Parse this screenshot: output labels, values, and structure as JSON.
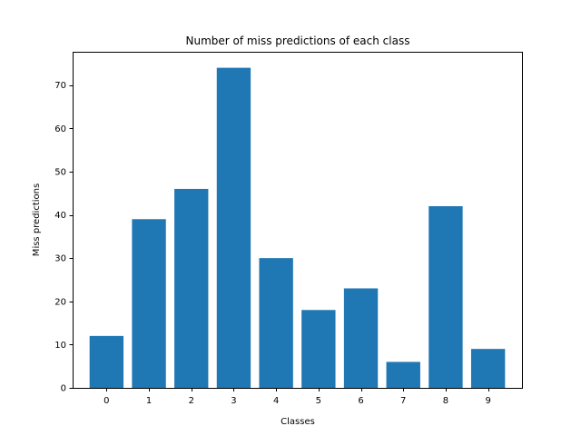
{
  "chart_data": {
    "type": "bar",
    "title": "Number of miss predictions of each class",
    "xlabel": "Classes",
    "ylabel": "Miss predictions",
    "categories": [
      "0",
      "1",
      "2",
      "3",
      "4",
      "5",
      "6",
      "7",
      "8",
      "9"
    ],
    "values": [
      12,
      39,
      46,
      74,
      30,
      18,
      23,
      6,
      42,
      9
    ],
    "ylim": [
      0,
      77.7
    ],
    "yticks": [
      0,
      10,
      20,
      30,
      40,
      50,
      60,
      70
    ],
    "grid": false,
    "bar_color": "#1f77b4"
  }
}
